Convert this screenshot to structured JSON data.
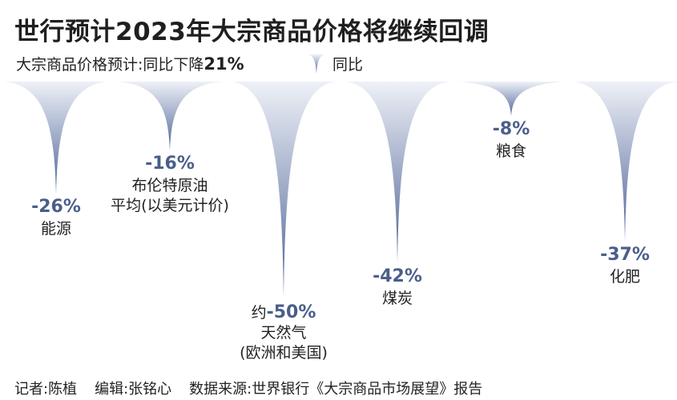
{
  "title": "世行预计2023年大宗商品价格将继续回调",
  "subtitle": {
    "prefix": "大宗商品价格预计:同比下降",
    "highlight": "21%"
  },
  "legend": {
    "label": "同比"
  },
  "footer": {
    "reporter": "记者:陈植",
    "editor": "编辑:张铭心",
    "source": "数据来源:世界银行《大宗商品市场展望》报告"
  },
  "colors": {
    "top": "#eef1f7",
    "bottom": "#4e6396",
    "value_text": "#4a5e8a"
  },
  "chart_data": {
    "type": "bar",
    "categories": [
      "能源",
      "布伦特原油 平均(以美元计价)",
      "天然气 (欧洲和美国)",
      "煤炭",
      "粮食",
      "化肥"
    ],
    "values": [
      -26,
      -16,
      -50,
      -42,
      -8,
      -37
    ],
    "series": [
      {
        "name": "同比",
        "values": [
          -26,
          -16,
          -50,
          -42,
          -8,
          -37
        ]
      }
    ],
    "ylim": [
      -50,
      0
    ],
    "grid": false
  },
  "items": [
    {
      "value": -26,
      "value_text": "-26%",
      "prefix": "",
      "label_lines": [
        "能源"
      ]
    },
    {
      "value": -16,
      "value_text": "-16%",
      "prefix": "",
      "label_lines": [
        "布伦特原油",
        "平均(以美元计价)"
      ]
    },
    {
      "value": -50,
      "value_text": "-50%",
      "prefix": "约",
      "label_lines": [
        "天然气",
        "(欧洲和美国)"
      ]
    },
    {
      "value": -42,
      "value_text": "-42%",
      "prefix": "",
      "label_lines": [
        "煤炭"
      ]
    },
    {
      "value": -8,
      "value_text": "-8%",
      "prefix": "",
      "label_lines": [
        "粮食"
      ]
    },
    {
      "value": -37,
      "value_text": "-37%",
      "prefix": "",
      "label_lines": [
        "化肥"
      ]
    }
  ]
}
